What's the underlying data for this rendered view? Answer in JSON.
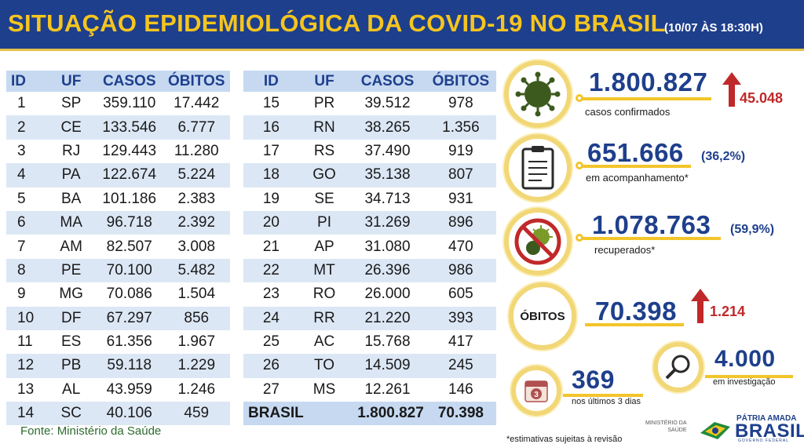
{
  "header": {
    "title": "SITUAÇÃO EPIDEMIOLÓGICA DA COVID-19 NO BRASIL",
    "subtitle": "(10/07 ÀS 18:30H)"
  },
  "table": {
    "columns": [
      "ID",
      "UF",
      "CASOS",
      "ÓBITOS"
    ],
    "left_rows": [
      [
        "1",
        "SP",
        "359.110",
        "17.442"
      ],
      [
        "2",
        "CE",
        "133.546",
        "6.777"
      ],
      [
        "3",
        "RJ",
        "129.443",
        "11.280"
      ],
      [
        "4",
        "PA",
        "122.674",
        "5.224"
      ],
      [
        "5",
        "BA",
        "101.186",
        "2.383"
      ],
      [
        "6",
        "MA",
        "96.718",
        "2.392"
      ],
      [
        "7",
        "AM",
        "82.507",
        "3.008"
      ],
      [
        "8",
        "PE",
        "70.100",
        "5.482"
      ],
      [
        "9",
        "MG",
        "70.086",
        "1.504"
      ],
      [
        "10",
        "DF",
        "67.297",
        "856"
      ],
      [
        "11",
        "ES",
        "61.356",
        "1.967"
      ],
      [
        "12",
        "PB",
        "59.118",
        "1.229"
      ],
      [
        "13",
        "AL",
        "43.959",
        "1.246"
      ],
      [
        "14",
        "SC",
        "40.106",
        "459"
      ]
    ],
    "right_rows": [
      [
        "15",
        "PR",
        "39.512",
        "978"
      ],
      [
        "16",
        "RN",
        "38.265",
        "1.356"
      ],
      [
        "17",
        "RS",
        "37.490",
        "919"
      ],
      [
        "18",
        "GO",
        "35.138",
        "807"
      ],
      [
        "19",
        "SE",
        "34.713",
        "931"
      ],
      [
        "20",
        "PI",
        "31.269",
        "896"
      ],
      [
        "21",
        "AP",
        "31.080",
        "470"
      ],
      [
        "22",
        "MT",
        "26.396",
        "986"
      ],
      [
        "23",
        "RO",
        "26.000",
        "605"
      ],
      [
        "24",
        "RR",
        "21.220",
        "393"
      ],
      [
        "25",
        "AC",
        "15.768",
        "417"
      ],
      [
        "26",
        "TO",
        "14.509",
        "245"
      ],
      [
        "27",
        "MS",
        "12.261",
        "146"
      ]
    ],
    "total": {
      "label": "BRASIL",
      "cases": "1.800.827",
      "deaths": "70.398"
    }
  },
  "source": "Fonte: Ministério da Saúde",
  "stats": {
    "confirmed": {
      "value": "1.800.827",
      "label": "casos confirmados",
      "increase": "45.048",
      "icon": "virus-icon"
    },
    "monitoring": {
      "value": "651.666",
      "pct": "(36,2%)",
      "label": "em acompanhamento*",
      "icon": "clipboard-icon"
    },
    "recovered": {
      "value": "1.078.763",
      "pct": "(59,9%)",
      "label": "recuperados*",
      "icon": "no-virus-icon"
    },
    "deaths": {
      "circle_label": "ÓBITOS",
      "value": "70.398",
      "increase": "1.214"
    },
    "investigation": {
      "value": "4.000",
      "label": "em investigação",
      "icon": "magnifier-icon"
    },
    "last3days": {
      "value": "369",
      "label": "nos últimos 3 dias",
      "calendar_day": "3",
      "icon": "calendar-icon"
    }
  },
  "footnote": "*estimativas sujeitas à revisão",
  "ministry": {
    "line1": "MINISTÉRIO DA",
    "line2": "SAÚDE"
  },
  "logo": {
    "top": "PÁTRIA AMADA",
    "word": "BRASIL",
    "sub": "GOVERNO FEDERAL"
  },
  "colors": {
    "navy": "#1e3f8c",
    "gold": "#f5c51f",
    "red": "#c0282a",
    "green": "#2d6b2d"
  }
}
